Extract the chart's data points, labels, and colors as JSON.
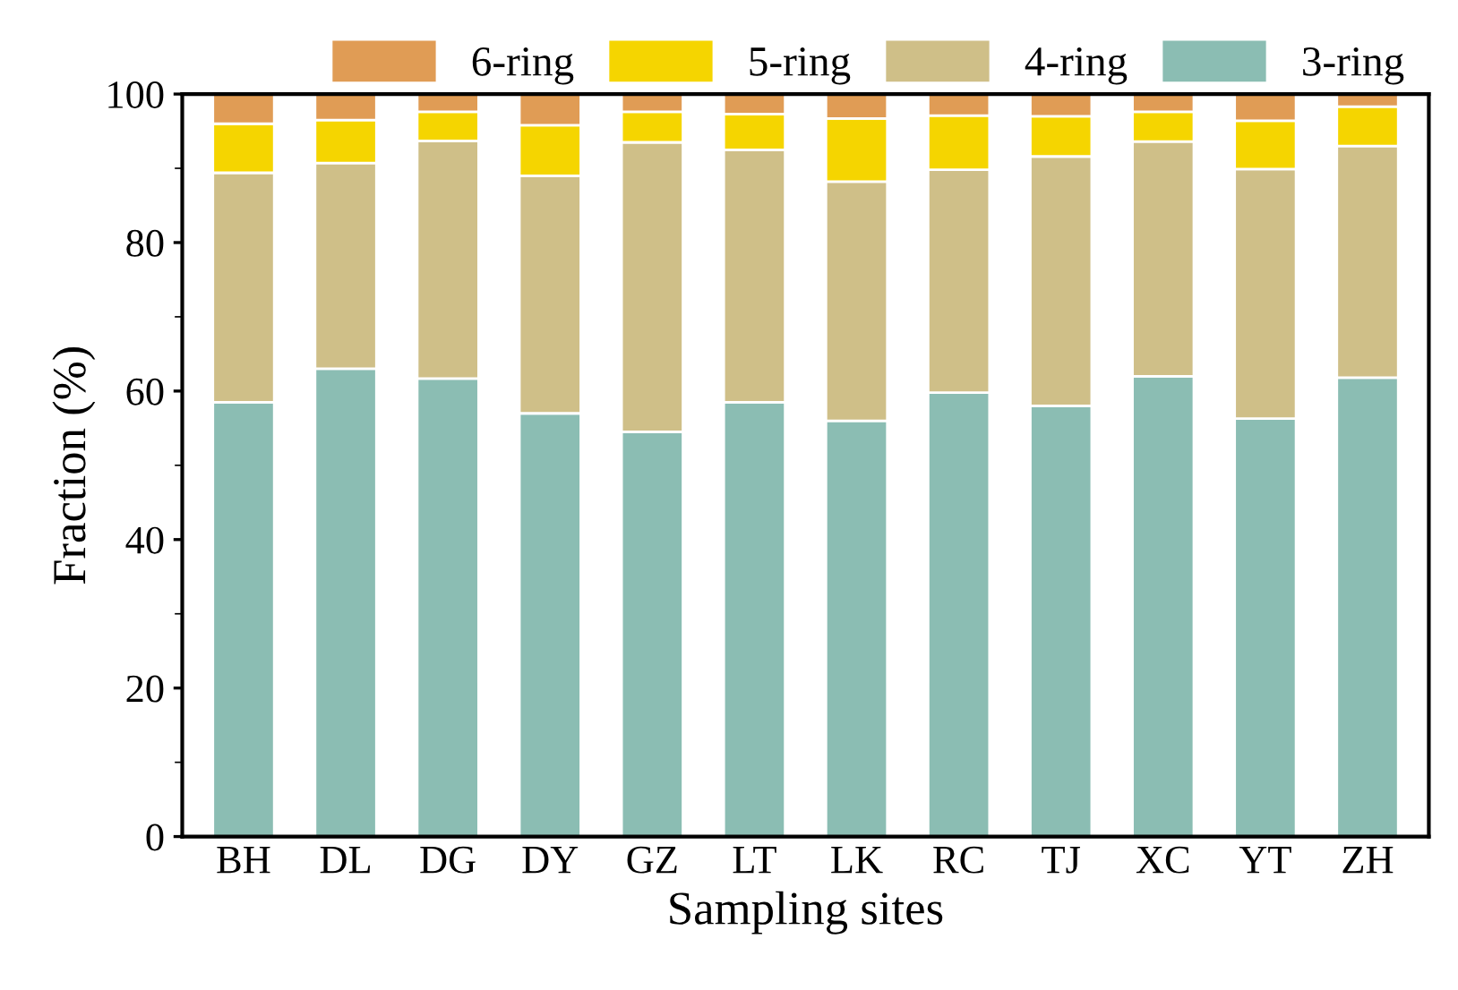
{
  "chart_data": {
    "type": "bar",
    "stacked": true,
    "xlabel": "Sampling sites",
    "ylabel": "Fraction (%)",
    "categories": [
      "BH",
      "DL",
      "DG",
      "DY",
      "GZ",
      "LT",
      "LK",
      "RC",
      "TJ",
      "XC",
      "YT",
      "ZH"
    ],
    "series": [
      {
        "name": "3-ring",
        "color": "#8bbdb3",
        "values": [
          58.5,
          63,
          61.7,
          57,
          54.5,
          58.5,
          56,
          59.8,
          58,
          62,
          56.3,
          61.8
        ]
      },
      {
        "name": "4-ring",
        "color": "#cfbf88",
        "values": [
          30.9,
          27.7,
          32,
          32,
          39,
          34,
          32.2,
          30,
          33.6,
          31.6,
          33.6,
          31.2
        ]
      },
      {
        "name": "5-ring",
        "color": "#f5d500",
        "values": [
          6.6,
          5.8,
          3.9,
          6.8,
          4.1,
          4.8,
          8.5,
          7.3,
          5.4,
          4,
          6.5,
          5.3
        ]
      },
      {
        "name": "6-ring",
        "color": "#e09c55",
        "values": [
          4,
          3.5,
          2.4,
          4.2,
          2.4,
          2.7,
          3.3,
          2.9,
          3,
          2.4,
          3.6,
          1.7
        ]
      }
    ],
    "ylim": [
      0,
      100
    ],
    "yticks": [
      0,
      20,
      40,
      60,
      80,
      100
    ],
    "grid": false,
    "legend": "top"
  }
}
